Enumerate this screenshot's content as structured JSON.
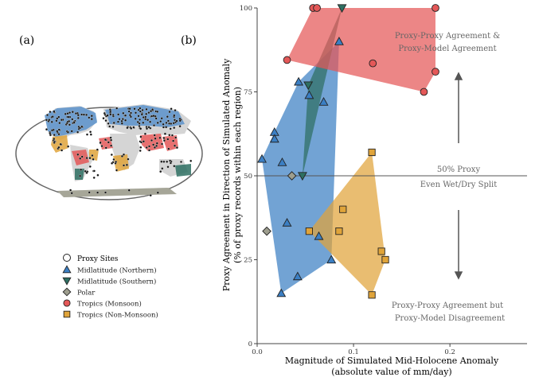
{
  "panels": {
    "a": "(a)",
    "b": "(b)"
  },
  "map": {
    "legend": {
      "sites_label": "Proxy Sites",
      "items": [
        {
          "label": "Midlatitude (Northern)",
          "color": "#3b7fc4",
          "marker": "triangle-up"
        },
        {
          "label": "Midlatitude (Southern)",
          "color": "#2e6f62",
          "marker": "triangle-down"
        },
        {
          "label": "Polar",
          "color": "#9e9e8e",
          "marker": "diamond"
        },
        {
          "label": "Tropics (Monsoon)",
          "color": "#e45858",
          "marker": "circle"
        },
        {
          "label": "Tropics (Non-Monsoon)",
          "color": "#e0a43a",
          "marker": "square"
        }
      ]
    }
  },
  "annotations": {
    "top_line1": "Proxy-Proxy Agreement &",
    "top_line2": "Proxy-Model Agreement",
    "mid_line1": "50% Proxy",
    "mid_line2": "Even Wet/Dry Split",
    "bottom_line1": "Proxy-Proxy Agreement but",
    "bottom_line2": "Proxy-Model Disagreement"
  },
  "chart_data": {
    "type": "scatter",
    "xlabel_line1": "Magnitude of Simulated Mid-Holocene Anomaly",
    "xlabel_line2": "(absolute value of mm/day)",
    "ylabel_line1": "Proxy Agreement in Direction of Simulated Anomaly",
    "ylabel_line2": "(% of proxy records within each region)",
    "xlim": [
      0,
      0.28
    ],
    "ylim": [
      0,
      100
    ],
    "x_ticks": [
      0,
      0.1,
      0.2
    ],
    "x_tick_labels": [
      "0.0",
      "0.1",
      "0.2"
    ],
    "y_ticks": [
      0,
      25,
      50,
      75,
      100
    ],
    "y_tick_labels": [
      "0",
      "25",
      "50",
      "75",
      "100"
    ],
    "reference_line_y": 50,
    "colors": {
      "mid_north": "#3b7fc4",
      "mid_south": "#2e6f62",
      "polar": "#9e9e8e",
      "trop_monsoon": "#e45858",
      "trop_nonmonsoon": "#e0a43a"
    },
    "series": [
      {
        "key": "mid_north",
        "marker": "triangle-up",
        "points": [
          [
            0.005,
            55
          ],
          [
            0.018,
            63
          ],
          [
            0.018,
            61
          ],
          [
            0.026,
            54
          ],
          [
            0.031,
            36
          ],
          [
            0.042,
            20
          ],
          [
            0.025,
            15
          ],
          [
            0.043,
            78
          ],
          [
            0.054,
            74
          ],
          [
            0.069,
            72
          ],
          [
            0.085,
            90
          ],
          [
            0.077,
            25
          ],
          [
            0.064,
            32
          ]
        ]
      },
      {
        "key": "mid_south",
        "marker": "triangle-down",
        "points": [
          [
            0.047,
            50
          ],
          [
            0.053,
            77
          ],
          [
            0.088,
            100
          ]
        ]
      },
      {
        "key": "polar",
        "marker": "diamond",
        "points": [
          [
            0.01,
            33.5
          ],
          [
            0.036,
            50
          ]
        ]
      },
      {
        "key": "trop_monsoon",
        "marker": "circle",
        "points": [
          [
            0.031,
            84.5
          ],
          [
            0.058,
            100
          ],
          [
            0.062,
            100
          ],
          [
            0.12,
            83.5
          ],
          [
            0.173,
            75
          ],
          [
            0.185,
            81
          ],
          [
            0.185,
            100
          ]
        ]
      },
      {
        "key": "trop_nonmonsoon",
        "marker": "square",
        "points": [
          [
            0.119,
            57
          ],
          [
            0.089,
            40
          ],
          [
            0.054,
            33.5
          ],
          [
            0.085,
            33.5
          ],
          [
            0.129,
            27.5
          ],
          [
            0.133,
            25
          ],
          [
            0.119,
            14.5
          ]
        ]
      }
    ]
  }
}
